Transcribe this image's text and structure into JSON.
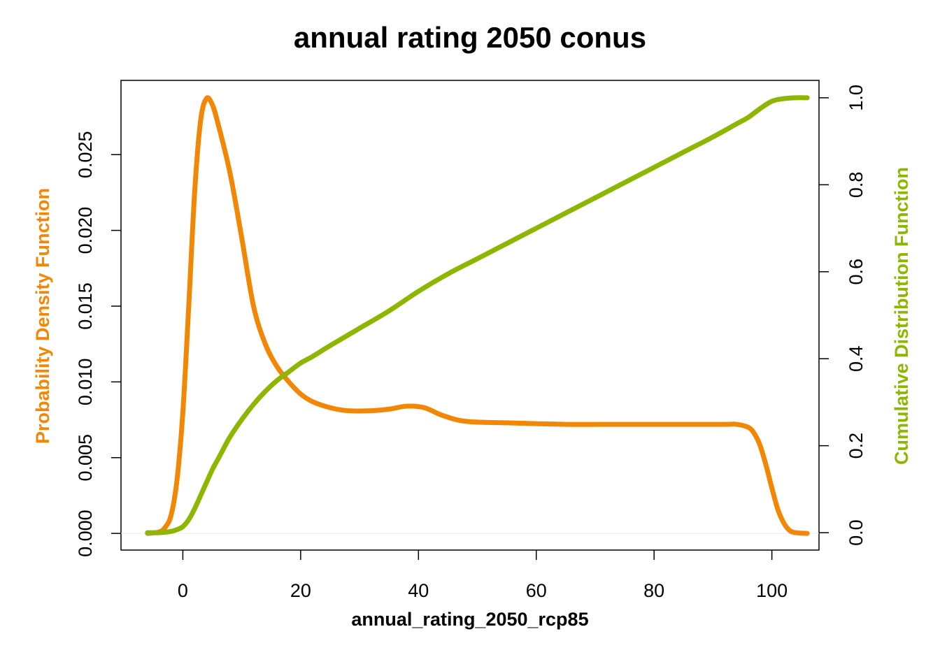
{
  "chart_data": {
    "type": "line",
    "title": "annual rating 2050 conus",
    "xlabel": "annual_rating_2050_rcp85",
    "ylabel_left": "Probability Density Function",
    "ylabel_right": "Cumulative Distribution Function",
    "xlim": [
      -10.5,
      108
    ],
    "ylim_left": [
      -0.0011,
      0.0299
    ],
    "ylim_right": [
      -0.04,
      1.04
    ],
    "x_ticks": [
      "0",
      "20",
      "40",
      "60",
      "80",
      "100"
    ],
    "y_left_ticks": [
      "0.000",
      "0.005",
      "0.010",
      "0.015",
      "0.020",
      "0.025"
    ],
    "y_right_ticks": [
      "0.0",
      "0.2",
      "0.4",
      "0.6",
      "0.8",
      "1.0"
    ],
    "grid": false,
    "colors": {
      "pdf": "#f28705",
      "cdf": "#8db600",
      "zero_line": "#eeeeee"
    },
    "series": [
      {
        "name": "Probability Density Function",
        "axis": "left",
        "x": [
          -6,
          -4,
          -3,
          -2,
          -1,
          0,
          1,
          2,
          3,
          4,
          5,
          6,
          8,
          10,
          12,
          14,
          16,
          18,
          20,
          22,
          25,
          28,
          32,
          35,
          38,
          41,
          44,
          48,
          55,
          65,
          75,
          85,
          92,
          94,
          96,
          97,
          98,
          99,
          100,
          101,
          102,
          103,
          104,
          106
        ],
        "values": [
          0.0,
          0.0001,
          0.0004,
          0.0012,
          0.0035,
          0.008,
          0.015,
          0.0225,
          0.0272,
          0.0287,
          0.0283,
          0.027,
          0.0238,
          0.0195,
          0.015,
          0.0125,
          0.011,
          0.01,
          0.0092,
          0.0087,
          0.0083,
          0.0081,
          0.0081,
          0.0082,
          0.0084,
          0.0083,
          0.0078,
          0.0074,
          0.0073,
          0.0072,
          0.0072,
          0.0072,
          0.0072,
          0.0072,
          0.007,
          0.0066,
          0.0058,
          0.0045,
          0.003,
          0.0016,
          0.0007,
          0.0002,
          5e-05,
          0.0
        ]
      },
      {
        "name": "Cumulative Distribution Function",
        "axis": "right",
        "x": [
          -6,
          -4,
          -2,
          -1,
          0,
          1,
          2,
          3,
          4,
          5,
          6,
          8,
          10,
          12,
          14,
          16,
          18,
          20,
          22,
          25,
          30,
          35,
          40,
          45,
          50,
          55,
          60,
          65,
          70,
          75,
          80,
          85,
          90,
          94,
          96,
          98,
          100,
          102,
          104,
          106
        ],
        "values": [
          0.0,
          0.0,
          0.003,
          0.007,
          0.014,
          0.03,
          0.055,
          0.085,
          0.115,
          0.145,
          0.17,
          0.22,
          0.26,
          0.295,
          0.325,
          0.35,
          0.37,
          0.39,
          0.405,
          0.43,
          0.47,
          0.51,
          0.555,
          0.595,
          0.63,
          0.665,
          0.7,
          0.735,
          0.77,
          0.805,
          0.84,
          0.875,
          0.91,
          0.94,
          0.955,
          0.975,
          0.992,
          0.998,
          1.0,
          1.0
        ]
      }
    ]
  }
}
